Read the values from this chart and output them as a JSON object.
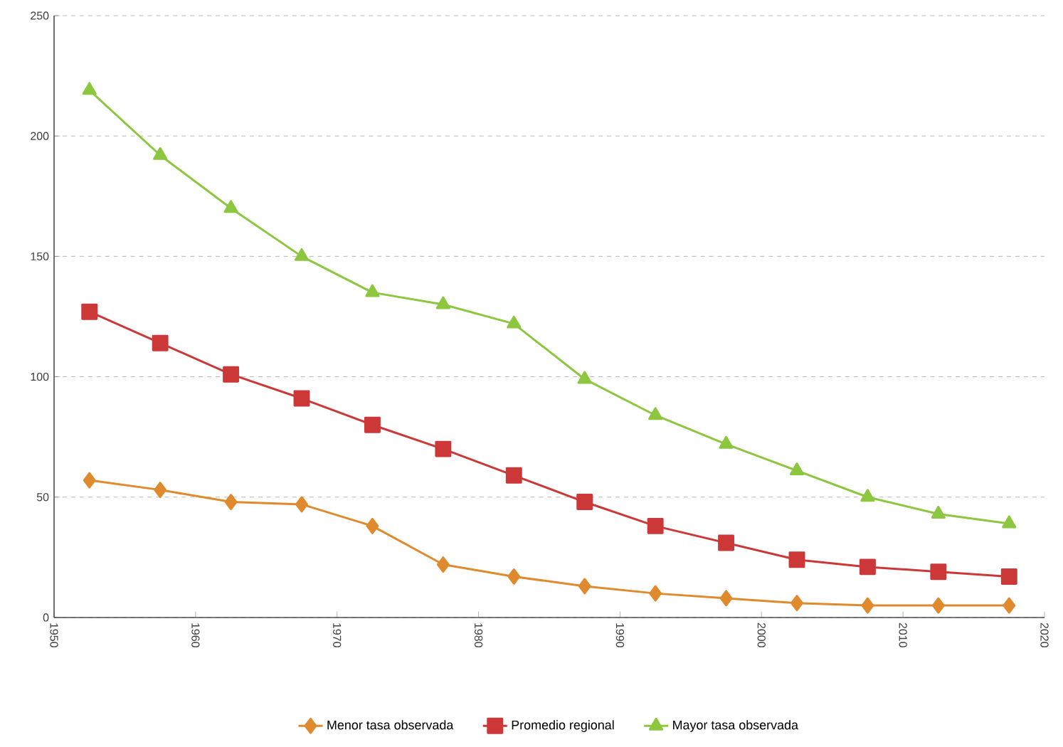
{
  "chart_data": {
    "type": "line",
    "x": [
      1952.5,
      1957.5,
      1962.5,
      1967.5,
      1972.5,
      1977.5,
      1982.5,
      1987.5,
      1992.5,
      1997.5,
      2002.5,
      2007.5,
      2012.5,
      2017.5
    ],
    "series": [
      {
        "name": "Menor tasa observada",
        "color": "#e08a2e",
        "marker": "diamond",
        "values": [
          57,
          53,
          48,
          47,
          38,
          22,
          17,
          13,
          10,
          8,
          6,
          5,
          5,
          5
        ]
      },
      {
        "name": "Promedio regional",
        "color": "#cc3838",
        "marker": "square",
        "values": [
          127,
          114,
          101,
          91,
          80,
          70,
          59,
          48,
          38,
          31,
          24,
          21,
          19,
          17
        ]
      },
      {
        "name": "Mayor tasa observada",
        "color": "#8dc63f",
        "marker": "triangle",
        "values": [
          219,
          192,
          170,
          150,
          135,
          130,
          122,
          99,
          84,
          72,
          61,
          50,
          43,
          39
        ]
      }
    ],
    "xlim": [
      1950,
      2020
    ],
    "xticks": [
      1950,
      1960,
      1970,
      1980,
      1990,
      2000,
      2010,
      2020
    ],
    "ylim": [
      0,
      250
    ],
    "yticks": [
      0,
      50,
      100,
      150,
      200,
      250
    ],
    "grid": "y",
    "legend": "bottom"
  }
}
